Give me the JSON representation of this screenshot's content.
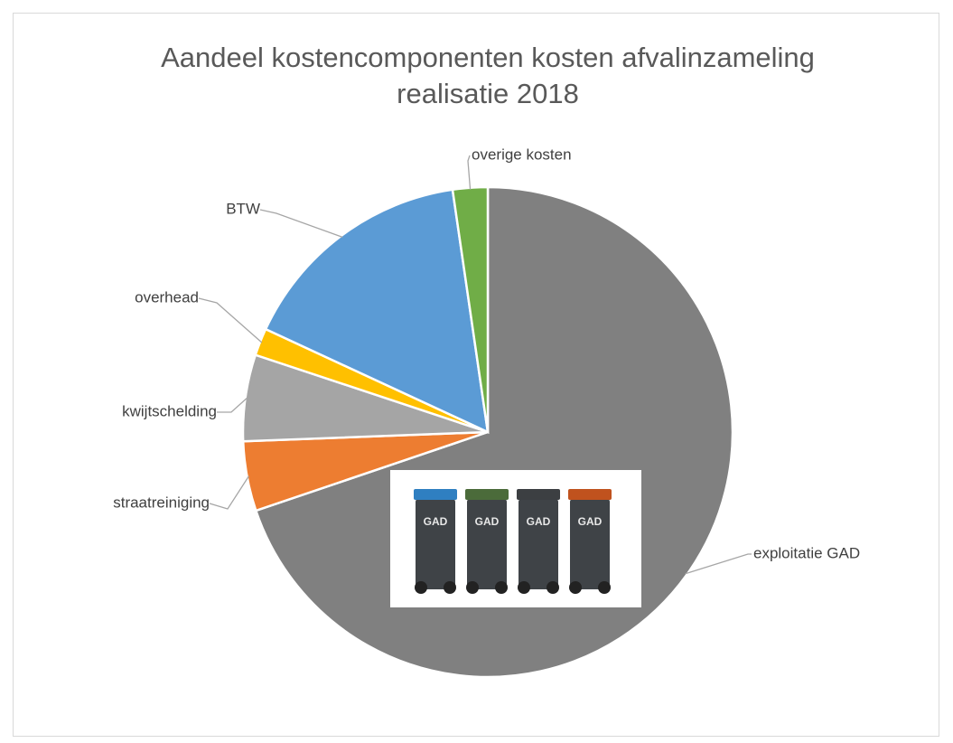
{
  "chart_data": {
    "type": "pie",
    "title": "Aandeel kostencomponenten kosten afvalinzameling",
    "subtitle": "realisatie 2018",
    "categories": [
      "exploitatie GAD",
      "straatreiniging",
      "kwijtschelding",
      "overhead",
      "BTW",
      "overige kosten"
    ],
    "values": [
      69.8,
      4.6,
      5.7,
      1.8,
      15.8,
      2.3
    ],
    "colors": [
      "#808080",
      "#ed7d31",
      "#a5a5a5",
      "#ffc000",
      "#5b9bd5",
      "#70ad47"
    ]
  },
  "image": {
    "bin_labels": [
      "GAD",
      "GAD",
      "GAD",
      "GAD"
    ]
  }
}
